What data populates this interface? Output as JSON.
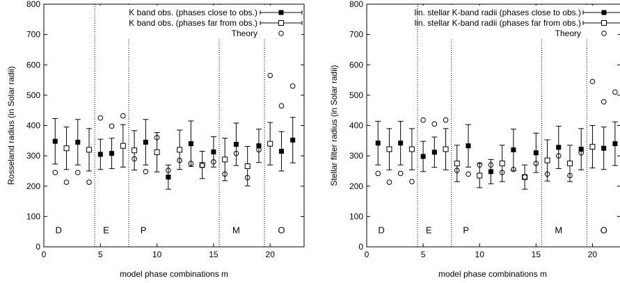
{
  "chart_data": [
    {
      "type": "scatter",
      "xlabel": "model phase combinations m",
      "ylabel": "Rosseland radius (in Solar radii)",
      "xlim": [
        0,
        23
      ],
      "ylim": [
        0,
        800
      ],
      "xticks": [
        0,
        5,
        10,
        15,
        20
      ],
      "yticks": [
        0,
        100,
        200,
        300,
        400,
        500,
        600,
        700,
        800
      ],
      "dividers": [
        4.5,
        7.5,
        15.5,
        19.5
      ],
      "regions": [
        {
          "label": "D",
          "x": 1.3
        },
        {
          "label": "E",
          "x": 5.5
        },
        {
          "label": "P",
          "x": 8.8
        },
        {
          "label": "M",
          "x": 17
        },
        {
          "label": "O",
          "x": 21
        }
      ],
      "legend_position": "top-right",
      "series": [
        {
          "name": "K band obs. (phases close to obs.)",
          "marker": "filled-square",
          "x": [
            1,
            3,
            5,
            6,
            9,
            11,
            13,
            15,
            17,
            19,
            21,
            22
          ],
          "y": [
            348,
            345,
            305,
            308,
            345,
            230,
            340,
            313,
            338,
            333,
            315,
            352
          ],
          "err": [
            75,
            75,
            50,
            50,
            75,
            40,
            75,
            50,
            70,
            55,
            65,
            75
          ]
        },
        {
          "name": "K band obs. (phases far from obs.)",
          "marker": "open-square",
          "x": [
            2,
            4,
            7,
            8,
            10,
            12,
            14,
            16,
            18,
            20
          ],
          "y": [
            325,
            320,
            333,
            318,
            312,
            320,
            270,
            288,
            266,
            340
          ],
          "err": [
            70,
            70,
            70,
            65,
            65,
            65,
            45,
            70,
            65,
            70
          ]
        },
        {
          "name": "Theory",
          "marker": "open-circle",
          "x": [
            1,
            2,
            3,
            4,
            5,
            6,
            7,
            8,
            9,
            10,
            11,
            12,
            13,
            14,
            15,
            16,
            17,
            18,
            19,
            20,
            21,
            22
          ],
          "y": [
            245,
            213,
            245,
            213,
            425,
            398,
            432,
            290,
            248,
            360,
            252,
            285,
            275,
            268,
            280,
            240,
            308,
            228,
            320,
            565,
            465,
            530
          ]
        }
      ],
      "extra_theory_points": {
        "x": [
          20.6
        ],
        "y": [
          700
        ]
      }
    },
    {
      "type": "scatter",
      "xlabel": "model phase combinations m",
      "ylabel": "Stellar filter radius (in Solar radii)",
      "xlim": [
        0,
        22.5
      ],
      "ylim": [
        0,
        800
      ],
      "xticks": [
        0,
        5,
        10,
        15,
        20
      ],
      "yticks": [
        0,
        100,
        200,
        300,
        400,
        500,
        600,
        700,
        800
      ],
      "dividers": [
        4.5,
        7.5,
        15.5,
        19.5
      ],
      "regions": [
        {
          "label": "D",
          "x": 1.3
        },
        {
          "label": "E",
          "x": 5.5
        },
        {
          "label": "P",
          "x": 8.8
        },
        {
          "label": "M",
          "x": 17
        },
        {
          "label": "O",
          "x": 21
        }
      ],
      "legend_position": "top-right",
      "series": [
        {
          "name": "lin. stellar K-band radii (phases close to obs.)",
          "marker": "filled-square",
          "x": [
            1,
            3,
            5,
            6,
            9,
            11,
            13,
            15,
            17,
            19,
            21,
            22
          ],
          "y": [
            342,
            342,
            298,
            312,
            333,
            248,
            320,
            310,
            328,
            322,
            325,
            340
          ],
          "err": [
            72,
            72,
            50,
            50,
            70,
            40,
            68,
            65,
            70,
            68,
            70,
            72
          ]
        },
        {
          "name": "lin. stellar K-band radii (phases far from obs.)",
          "marker": "open-square",
          "x": [
            2,
            4,
            7,
            8,
            10,
            12,
            14,
            16,
            18,
            20
          ],
          "y": [
            322,
            322,
            322,
            275,
            235,
            275,
            230,
            285,
            275,
            330
          ],
          "err": [
            68,
            68,
            68,
            60,
            40,
            60,
            40,
            68,
            60,
            70
          ]
        },
        {
          "name": "Theory",
          "marker": "open-circle",
          "x": [
            1,
            2,
            3,
            4,
            5,
            6,
            7,
            8,
            9,
            10,
            11,
            12,
            13,
            14,
            15,
            16,
            17,
            18,
            19,
            20,
            21,
            22
          ],
          "y": [
            242,
            213,
            242,
            215,
            418,
            405,
            418,
            252,
            240,
            270,
            270,
            245,
            255,
            230,
            275,
            240,
            300,
            235,
            310,
            545,
            478,
            510
          ]
        }
      ],
      "extra_theory_points": {
        "x": [
          20.6
        ],
        "y": [
          700
        ]
      }
    }
  ]
}
